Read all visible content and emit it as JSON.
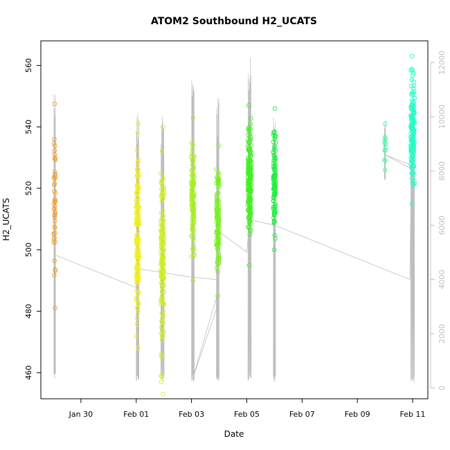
{
  "chart_data": {
    "type": "scatter",
    "title": "ATOM2 Southbound H2_UCATS",
    "xlabel": "Date",
    "ylabel": "H2_UCATS",
    "x_ticks": [
      {
        "label": "Jan 30",
        "day": 30
      },
      {
        "label": "Feb 01",
        "day": 32
      },
      {
        "label": "Feb 03",
        "day": 34
      },
      {
        "label": "Feb 05",
        "day": 36
      },
      {
        "label": "Feb 07",
        "day": 38
      },
      {
        "label": "Feb 09",
        "day": 40
      },
      {
        "label": "Feb 11",
        "day": 42
      }
    ],
    "xlim": [
      28.55,
      42.55
    ],
    "ylim": [
      451.5,
      568
    ],
    "y_ticks": [
      460,
      480,
      500,
      520,
      540,
      560
    ],
    "y2_ticks": [
      0,
      2000,
      4000,
      6000,
      8000,
      10000,
      12000
    ],
    "y2lim": [
      -400,
      12800
    ],
    "colors": {
      "series": [
        "#f0a030",
        "#f0f020",
        "#d0f020",
        "#a8f020",
        "#78f020",
        "#40f020",
        "#20f040",
        "#40ffa0",
        "#20ffc8"
      ],
      "altitude": "#bebebe",
      "axis_right": "#c0c0c0",
      "axis": "#000000"
    },
    "flights": [
      {
        "x": 29.05,
        "x_spread": 0.06,
        "y_min": 481,
        "y_max": 547.5,
        "n": 45,
        "color_index": 0,
        "alt_min": 300,
        "alt_max": 11300
      },
      {
        "x": 32.05,
        "x_spread": 0.1,
        "y_min": 468,
        "y_max": 541,
        "n": 160,
        "color_index": 1,
        "alt_min": 200,
        "alt_max": 10300
      },
      {
        "x": 32.95,
        "x_spread": 0.12,
        "y_min": 453,
        "y_max": 540,
        "n": 150,
        "color_index": 2,
        "alt_min": 200,
        "alt_max": 10300
      },
      {
        "x": 34.05,
        "x_spread": 0.1,
        "y_min": 490,
        "y_max": 543,
        "n": 110,
        "color_index": 3,
        "alt_min": 200,
        "alt_max": 12000
      },
      {
        "x": 34.95,
        "x_spread": 0.1,
        "y_min": 485,
        "y_max": 534,
        "n": 110,
        "color_index": 4,
        "alt_min": 200,
        "alt_max": 10700
      },
      {
        "x": 36.1,
        "x_spread": 0.12,
        "y_min": 495,
        "y_max": 547,
        "n": 160,
        "color_index": 5,
        "alt_min": 200,
        "alt_max": 12200
      },
      {
        "x": 37.0,
        "x_spread": 0.08,
        "y_min": 500,
        "y_max": 546,
        "n": 110,
        "color_index": 6,
        "alt_min": 200,
        "alt_max": 10400
      },
      {
        "x": 41.0,
        "x_spread": 0.04,
        "y_min": 526,
        "y_max": 541,
        "n": 10,
        "color_index": 7,
        "alt_min": 7500,
        "alt_max": 10000
      },
      {
        "x": 42.0,
        "x_spread": 0.14,
        "y_min": 515,
        "y_max": 563,
        "n": 150,
        "color_index": 8,
        "alt_min": 200,
        "alt_max": 10600
      }
    ],
    "ferry_path": [
      [
        29.07,
        4900
      ],
      [
        32.0,
        3700
      ],
      [
        32.05,
        4400
      ],
      [
        33.9,
        4100
      ],
      [
        34.9,
        4000
      ],
      [
        34.95,
        3500
      ],
      [
        34.03,
        300
      ],
      [
        34.9,
        2900
      ],
      [
        34.95,
        5800
      ],
      [
        36.0,
        5000
      ],
      [
        36.1,
        6200
      ],
      [
        37.0,
        6000
      ],
      [
        41.9,
        4000
      ],
      [
        41.95,
        7800
      ],
      [
        41.98,
        8200
      ],
      [
        41.0,
        8600
      ],
      [
        42.1,
        8000
      ]
    ]
  }
}
